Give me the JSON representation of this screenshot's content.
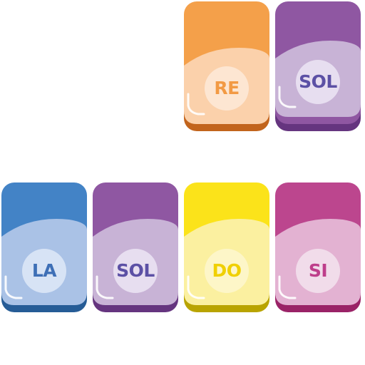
{
  "tiles": [
    {
      "note": "RE",
      "dark": "#c2641c",
      "main": "#f4a04a",
      "light": "#fbd1ab",
      "circle": "#fde6d2",
      "text": "#f29a44"
    },
    {
      "note": "SOL",
      "dark": "#65357f",
      "main": "#8f57a2",
      "light": "#c8b3d6",
      "circle": "#e7def0",
      "text": "#5c50a5"
    },
    {
      "note": "LA",
      "dark": "#265c96",
      "main": "#4383c6",
      "light": "#aac2e6",
      "circle": "#d7e3f5",
      "text": "#3e6fb6"
    },
    {
      "note": "SOL",
      "dark": "#65357f",
      "main": "#8f57a2",
      "light": "#c8b3d6",
      "circle": "#e7def0",
      "text": "#5c50a5"
    },
    {
      "note": "DO",
      "dark": "#b9a400",
      "main": "#fbe31a",
      "light": "#fbf0a0",
      "circle": "#fdf6c8",
      "text": "#f0d000"
    },
    {
      "note": "SI",
      "dark": "#9a2367",
      "main": "#bc468e",
      "light": "#e3b2d2",
      "circle": "#f1dcea",
      "text": "#be3e8b"
    }
  ]
}
